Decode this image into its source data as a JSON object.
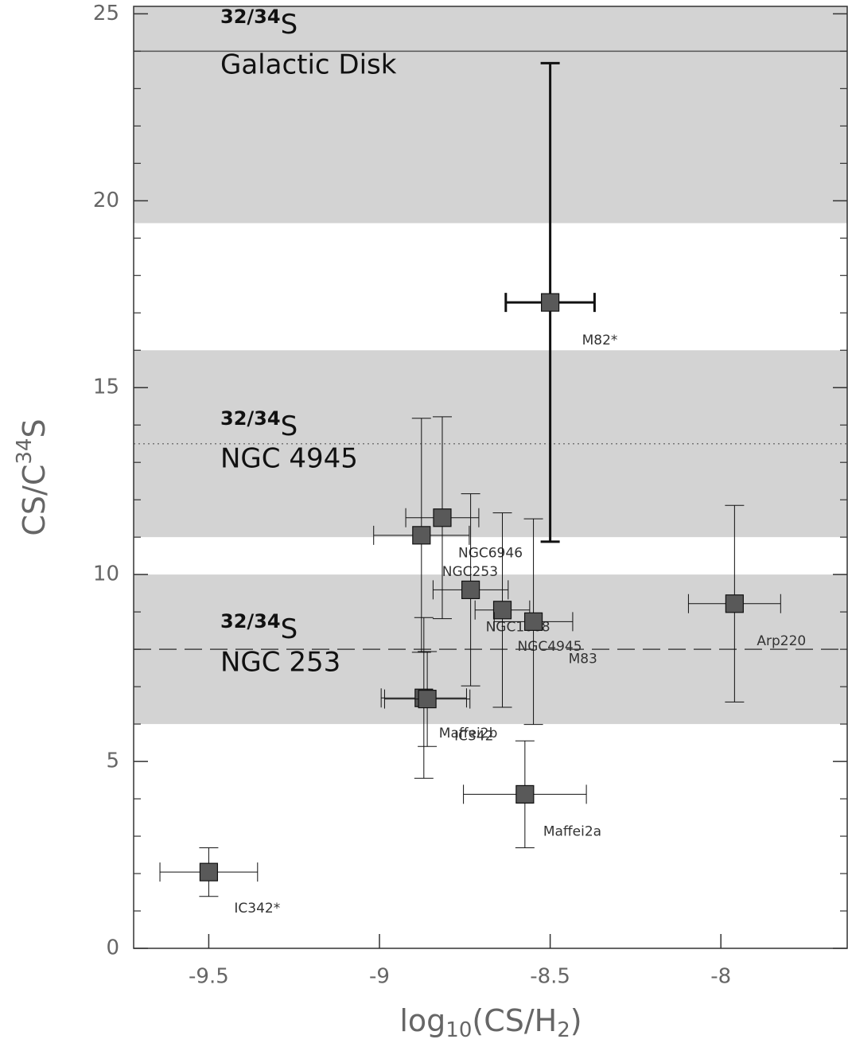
{
  "chart_data": {
    "type": "scatter",
    "xlabel": [
      "log",
      "10",
      "(CS/H",
      "2",
      ")"
    ],
    "ylabel": [
      "CS/C",
      "34",
      "S"
    ],
    "xlim": [
      -9.72,
      -7.63
    ],
    "ylim": [
      0,
      25.2
    ],
    "xticks": [
      -9.5,
      -9,
      -8.5,
      -8
    ],
    "yticks": [
      0,
      5,
      10,
      15,
      20,
      25
    ],
    "yminorticks": [
      1,
      2,
      3,
      4,
      6,
      7,
      8,
      9,
      11,
      12,
      13,
      14,
      16,
      17,
      18,
      19,
      21,
      22,
      23,
      24
    ],
    "bands": [
      [
        19.4,
        25.2
      ],
      [
        11,
        16
      ],
      [
        6,
        10
      ]
    ],
    "band_color": "#d3d3d3",
    "reference_lines": [
      {
        "value": 24,
        "style": "solid",
        "color": "#555555"
      },
      {
        "value": 13.5,
        "style": "dotted",
        "color": "#777777"
      },
      {
        "value": 8,
        "style": "dashed",
        "color": "#444444"
      }
    ],
    "annotations": [
      {
        "sup": "32/34",
        "base": "S",
        "line2": "Galactic Disk"
      },
      {
        "sup": "32/34",
        "base": "S",
        "line2": "NGC 4945"
      },
      {
        "sup": "32/34",
        "base": "S",
        "line2": "NGC 253"
      }
    ],
    "marker_color": "#595959",
    "labels": [
      "M82*",
      "Arp220",
      "NGC6946",
      "NGC253",
      "NGC1068",
      "NGC4945",
      "M83",
      "Maffei2b",
      "IC342",
      "Maffei2a",
      "IC342*"
    ],
    "x": [
      -8.5,
      -7.96,
      -8.816,
      -8.877,
      -8.733,
      -8.64,
      -8.549,
      -8.87,
      -8.86,
      -8.574,
      -9.5
    ],
    "values": [
      17.28,
      9.22,
      11.52,
      11.05,
      9.59,
      9.05,
      8.74,
      6.7,
      6.67,
      4.12,
      2.04
    ],
    "xerr": [
      0.13,
      0.135,
      0.107,
      0.14,
      0.11,
      0.08,
      0.115,
      0.125,
      0.125,
      0.18,
      0.143
    ],
    "yerr": [
      6.4,
      2.63,
      2.7,
      3.13,
      2.57,
      2.6,
      2.75,
      2.15,
      1.27,
      1.43,
      0.65
    ],
    "line_widths": [
      3,
      1,
      1,
      1,
      1,
      1,
      1,
      1,
      1,
      1,
      1
    ]
  }
}
